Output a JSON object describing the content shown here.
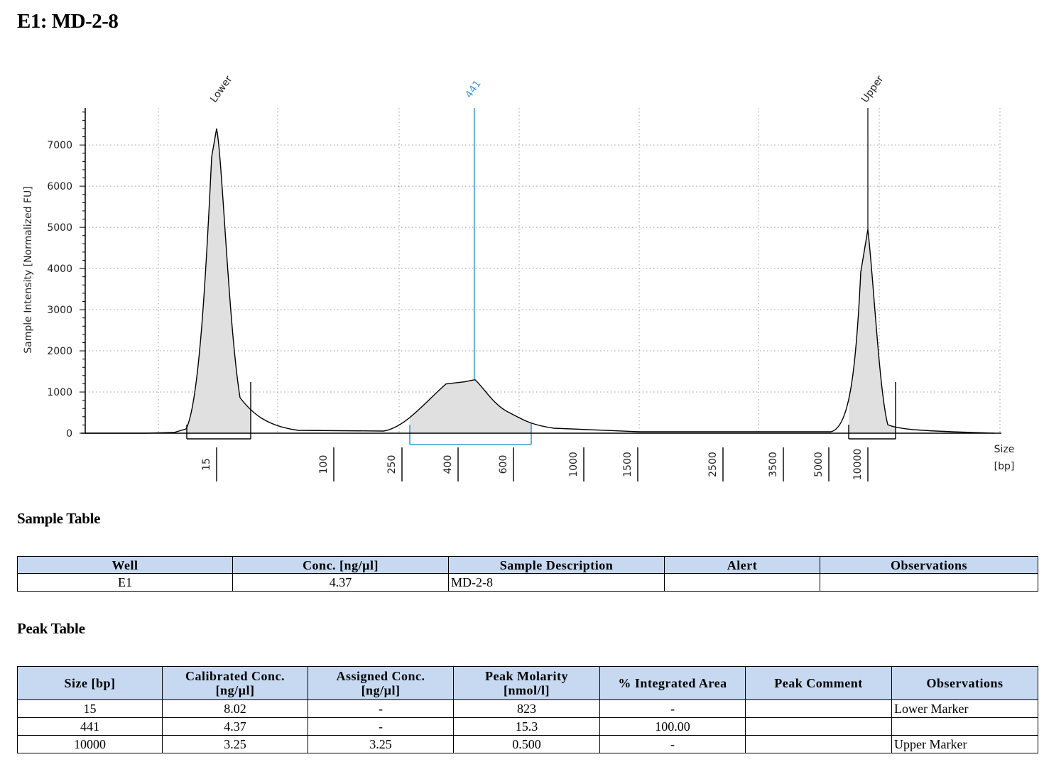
{
  "page": {
    "title": "E1: MD-2-8"
  },
  "sections": {
    "sample_table_title": "Sample Table",
    "peak_table_title": "Peak Table"
  },
  "chart_data": {
    "type": "line",
    "ylabel": "Sample Intensity [Normalized FU]",
    "xlabel": [
      "Size",
      "[bp]"
    ],
    "y_ticks": [
      0,
      1000,
      2000,
      3000,
      4000,
      5000,
      6000,
      7000
    ],
    "ylim": [
      0,
      7900
    ],
    "x_tick_labels": [
      "15",
      "100",
      "250",
      "400",
      "600",
      "1000",
      "1500",
      "2500",
      "3500",
      "5000",
      "10000"
    ],
    "grid": true,
    "peak_labels": [
      {
        "label": "Lower",
        "size_bp": 15,
        "intensity": 7400
      },
      {
        "label": "441",
        "size_bp": 441,
        "intensity": 1300
      },
      {
        "label": "Upper",
        "size_bp": 10000,
        "intensity": 4950
      }
    ],
    "colors": {
      "trace": "#000000",
      "fill": "#e0e0e0",
      "selected": "#3a9ad9",
      "grid": "#9a9a9a"
    }
  },
  "sample_table": {
    "headers": [
      "Well",
      "Conc. [ng/µl]",
      "Sample Description",
      "Alert",
      "Observations"
    ],
    "rows": [
      [
        "E1",
        "4.37",
        "MD-2-8",
        "",
        ""
      ]
    ]
  },
  "peak_table": {
    "headers": [
      "Size [bp]",
      "Calibrated Conc.\n[ng/µl]",
      "Assigned Conc.\n[ng/µl]",
      "Peak Molarity\n[nmol/l]",
      "% Integrated Area",
      "Peak Comment",
      "Observations"
    ],
    "rows": [
      [
        "15",
        "8.02",
        "-",
        "823",
        "-",
        "",
        "Lower Marker"
      ],
      [
        "441",
        "4.37",
        "-",
        "15.3",
        "100.00",
        "",
        ""
      ],
      [
        "10000",
        "3.25",
        "3.25",
        "0.500",
        "-",
        "",
        "Upper Marker"
      ]
    ]
  }
}
